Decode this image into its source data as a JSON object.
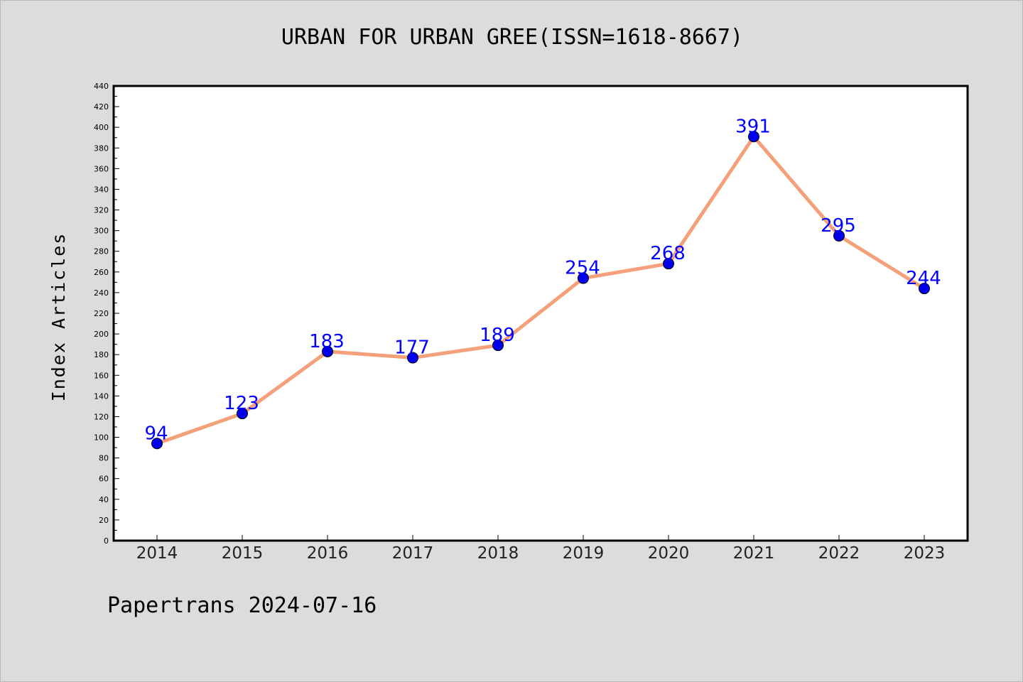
{
  "chart_data": {
    "type": "line",
    "title": "URBAN FOR URBAN GREE(ISSN=1618-8667)",
    "xlabel": "",
    "ylabel": "Index Articles",
    "categories": [
      "2014",
      "2015",
      "2016",
      "2017",
      "2018",
      "2019",
      "2020",
      "2021",
      "2022",
      "2023"
    ],
    "series": [
      {
        "values": [
          94,
          123,
          183,
          177,
          189,
          254,
          268,
          391,
          295,
          244
        ]
      }
    ],
    "ylim": [
      0,
      440
    ],
    "ytick_step": 20,
    "grid": false,
    "colors": {
      "line": "#f4a07a",
      "marker": "#0000ee",
      "label": "#0000ff",
      "background": "#dcdcdc",
      "plot": "#ffffff"
    }
  },
  "footer": "Papertrans 2024-07-16"
}
